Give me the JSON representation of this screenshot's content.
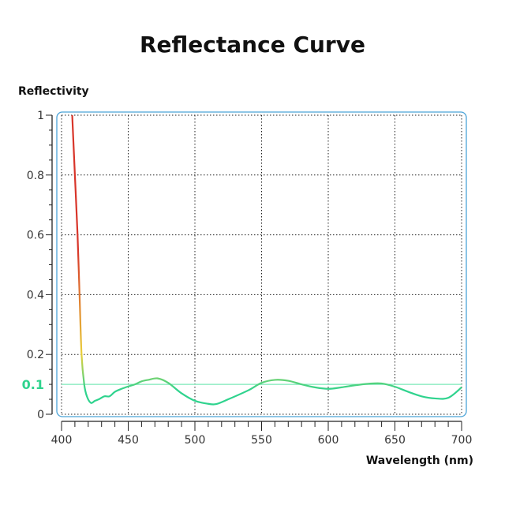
{
  "chart_data": {
    "type": "line",
    "title": "Reflectance Curve",
    "xlabel": "Wavelength (nm)",
    "ylabel": "Reflectivity",
    "xlim": [
      400,
      700
    ],
    "ylim": [
      0,
      1
    ],
    "xticks": [
      400,
      450,
      500,
      550,
      600,
      650,
      700
    ],
    "yticks": [
      0,
      0.2,
      0.4,
      0.6,
      0.8,
      1
    ],
    "ytick_labels": [
      "0",
      "0.2",
      "0.4",
      "0.6",
      "0.8",
      "1"
    ],
    "grid": true,
    "reference_line": {
      "y": 0.1,
      "label": "0.1",
      "color": "#7de8b8"
    },
    "line_color": "#2fd38e",
    "gradient_colors": [
      "#d8352a",
      "#e9d03a",
      "#2fd38e"
    ],
    "frame_color": "#4aa3d8",
    "series": [
      {
        "x": [
          408,
          410,
          412,
          413.5,
          415,
          417,
          419,
          422,
          425,
          428,
          432,
          436,
          440,
          445,
          450,
          455,
          460,
          465,
          472,
          480,
          490,
          500,
          510,
          516,
          525,
          540,
          550,
          560,
          570,
          580,
          590,
          600,
          610,
          620,
          630,
          640,
          650,
          660,
          670,
          680,
          690,
          700
        ],
        "y": [
          1.0,
          0.8,
          0.6,
          0.4,
          0.2,
          0.1,
          0.06,
          0.038,
          0.045,
          0.05,
          0.06,
          0.06,
          0.075,
          0.085,
          0.093,
          0.1,
          0.11,
          0.115,
          0.12,
          0.105,
          0.07,
          0.045,
          0.035,
          0.034,
          0.05,
          0.08,
          0.105,
          0.115,
          0.112,
          0.1,
          0.09,
          0.085,
          0.09,
          0.097,
          0.102,
          0.103,
          0.092,
          0.075,
          0.06,
          0.053,
          0.055,
          0.09
        ]
      }
    ]
  }
}
